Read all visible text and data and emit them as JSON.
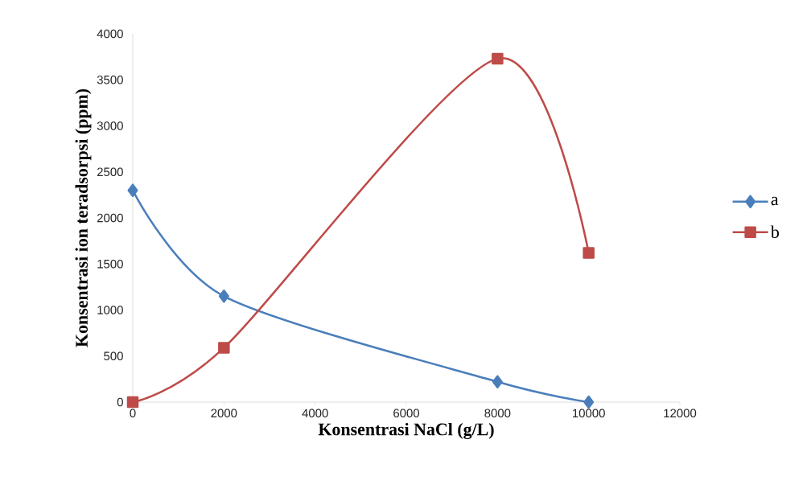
{
  "chart_data": {
    "type": "line",
    "xlabel": "Konsentrasi NaCl (g/L)",
    "ylabel": "Konsentrasi ion teradsorpsi (ppm)",
    "x": [
      0,
      2000,
      8000,
      10000
    ],
    "series": [
      {
        "name": "a",
        "color": "#4a7ebb",
        "marker": "diamond",
        "values": [
          2300,
          1150,
          220,
          0
        ]
      },
      {
        "name": "b",
        "color": "#be4b48",
        "marker": "square",
        "values": [
          0,
          590,
          3730,
          1620
        ]
      }
    ],
    "xlim": [
      0,
      12000
    ],
    "xticks": [
      0,
      2000,
      4000,
      6000,
      8000,
      10000,
      12000
    ],
    "ylim": [
      0,
      4000
    ],
    "yticks": [
      0,
      500,
      1000,
      1500,
      2000,
      2500,
      3000,
      3500,
      4000
    ],
    "legend": "right",
    "grid": false
  }
}
